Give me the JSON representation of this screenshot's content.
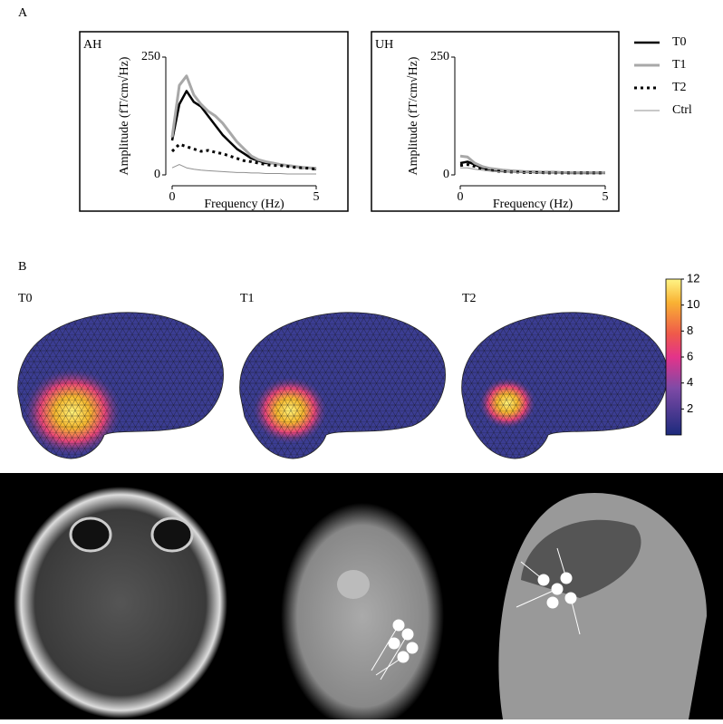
{
  "panel_labels": {
    "a": "A",
    "b": "B"
  },
  "chart_data": [
    {
      "type": "line",
      "title": "AH",
      "ylabel": "Amplitude (fT/cm√Hz)",
      "xlabel": "Frequency (Hz)",
      "x": [
        0,
        0.25,
        0.5,
        0.75,
        1,
        1.25,
        1.5,
        1.75,
        2,
        2.25,
        2.5,
        2.75,
        3,
        3.25,
        3.5,
        3.75,
        4,
        4.25,
        4.5,
        4.75,
        5
      ],
      "xlim": [
        0,
        5
      ],
      "xticks": [
        0,
        5
      ],
      "ylim": [
        0,
        250
      ],
      "yticks": [
        0,
        250
      ],
      "series": [
        {
          "name": "T0",
          "color": "#000000",
          "linestyle": "solid",
          "values": [
            73,
            150,
            178,
            155,
            145,
            125,
            105,
            85,
            70,
            55,
            45,
            35,
            30,
            25,
            25,
            22,
            20,
            18,
            15,
            15,
            12
          ]
        },
        {
          "name": "T1",
          "color": "#a8a8a8",
          "linestyle": "solid",
          "values": [
            80,
            190,
            210,
            170,
            150,
            135,
            125,
            110,
            90,
            70,
            55,
            40,
            32,
            28,
            25,
            22,
            20,
            18,
            16,
            15,
            14
          ]
        },
        {
          "name": "T2",
          "color": "#000000",
          "linestyle": "dotted",
          "values": [
            50,
            65,
            60,
            55,
            50,
            52,
            48,
            45,
            40,
            35,
            30,
            28,
            25,
            22,
            20,
            20,
            18,
            16,
            15,
            14,
            12
          ]
        },
        {
          "name": "Ctrl",
          "color": "#909090",
          "linestyle": "thin",
          "values": [
            15,
            22,
            15,
            12,
            10,
            9,
            8,
            7,
            6,
            5,
            5,
            4,
            4,
            3,
            3,
            3,
            2,
            2,
            2,
            2,
            2
          ]
        }
      ]
    },
    {
      "type": "line",
      "title": "UH",
      "ylabel": "Amplitude (fT/cm√Hz)",
      "xlabel": "Frequency (Hz)",
      "x": [
        0,
        0.25,
        0.5,
        0.75,
        1,
        1.25,
        1.5,
        1.75,
        2,
        2.25,
        2.5,
        2.75,
        3,
        3.25,
        3.5,
        3.75,
        4,
        4.25,
        4.5,
        4.75,
        5
      ],
      "xlim": [
        0,
        5
      ],
      "xticks": [
        0,
        5
      ],
      "ylim": [
        0,
        250
      ],
      "yticks": [
        0,
        250
      ],
      "series": [
        {
          "name": "T0",
          "color": "#000000",
          "linestyle": "solid",
          "values": [
            25,
            28,
            22,
            15,
            12,
            10,
            8,
            7,
            7,
            6,
            6,
            5,
            5,
            5,
            5,
            4,
            4,
            4,
            4,
            4,
            4
          ]
        },
        {
          "name": "T1",
          "color": "#a8a8a8",
          "linestyle": "solid",
          "values": [
            40,
            38,
            25,
            18,
            14,
            12,
            10,
            9,
            8,
            7,
            7,
            6,
            6,
            6,
            5,
            5,
            5,
            5,
            5,
            5,
            5
          ]
        },
        {
          "name": "T2",
          "color": "#000000",
          "linestyle": "dotted",
          "values": [
            20,
            22,
            18,
            12,
            10,
            8,
            7,
            6,
            6,
            5,
            5,
            5,
            4,
            4,
            4,
            4,
            4,
            4,
            4,
            4,
            4
          ]
        },
        {
          "name": "Ctrl",
          "color": "#909090",
          "linestyle": "thin",
          "values": [
            15,
            15,
            12,
            10,
            8,
            7,
            6,
            6,
            5,
            5,
            5,
            4,
            4,
            4,
            4,
            4,
            4,
            4,
            4,
            4,
            4
          ]
        }
      ]
    }
  ],
  "brain_maps": [
    "T0",
    "T1",
    "T2"
  ],
  "colorbar": {
    "lim": [
      0,
      12
    ],
    "ticks": [
      2,
      4,
      6,
      8,
      10,
      12
    ]
  }
}
